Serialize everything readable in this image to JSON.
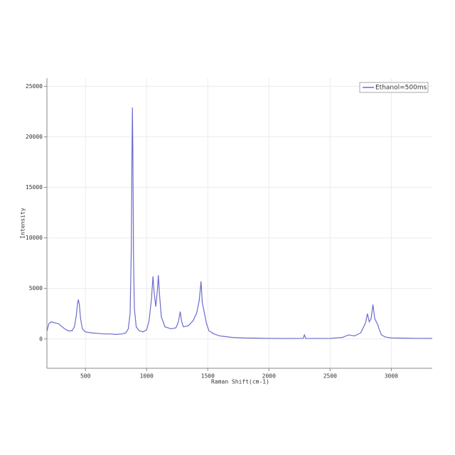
{
  "chart_data": {
    "type": "line",
    "x_label": "Raman Shift(cm-1)",
    "y_label": "Intensity",
    "xlim": [
      185,
      3335
    ],
    "ylim": [
      -2900,
      25800
    ],
    "xticks": [
      500,
      1000,
      1500,
      2000,
      2500,
      3000
    ],
    "yticks": [
      0,
      5000,
      10000,
      15000,
      20000,
      25000
    ],
    "grid": true,
    "legend": "upper right",
    "x": [
      186,
      200,
      220,
      250,
      280,
      300,
      330,
      360,
      390,
      410,
      425,
      435,
      442,
      450,
      460,
      475,
      500,
      550,
      600,
      650,
      700,
      750,
      800,
      830,
      850,
      865,
      875,
      880,
      884,
      888,
      893,
      900,
      915,
      940,
      970,
      1000,
      1020,
      1040,
      1052,
      1062,
      1075,
      1088,
      1096,
      1105,
      1120,
      1150,
      1200,
      1240,
      1260,
      1275,
      1285,
      1300,
      1340,
      1380,
      1410,
      1430,
      1445,
      1455,
      1470,
      1490,
      1510,
      1550,
      1600,
      1700,
      1800,
      1900,
      2000,
      2100,
      2200,
      2280,
      2290,
      2300,
      2400,
      2500,
      2600,
      2650,
      2700,
      2750,
      2790,
      2805,
      2820,
      2835,
      2850,
      2865,
      2890,
      2900,
      2920,
      2950,
      3000,
      3100,
      3200,
      3335
    ],
    "series": [
      {
        "name": "Ethanol=500ms",
        "color": "#6b6bd0",
        "values": [
          800,
          1500,
          1700,
          1600,
          1500,
          1300,
          1000,
          800,
          800,
          1200,
          2300,
          3500,
          3900,
          3400,
          2000,
          1000,
          700,
          600,
          550,
          500,
          500,
          450,
          500,
          600,
          1000,
          2500,
          9000,
          18000,
          22900,
          18000,
          8000,
          3000,
          1200,
          800,
          700,
          900,
          1800,
          4000,
          6200,
          4500,
          3200,
          4800,
          6300,
          4500,
          2200,
          1200,
          1000,
          1100,
          1700,
          2700,
          1800,
          1200,
          1300,
          1800,
          2600,
          3800,
          5700,
          3600,
          2700,
          1500,
          800,
          500,
          300,
          150,
          100,
          80,
          60,
          50,
          50,
          60,
          400,
          60,
          50,
          60,
          150,
          400,
          300,
          600,
          1600,
          2500,
          1700,
          2000,
          3400,
          2000,
          1400,
          1000,
          400,
          200,
          100,
          80,
          60,
          60
        ]
      }
    ]
  }
}
